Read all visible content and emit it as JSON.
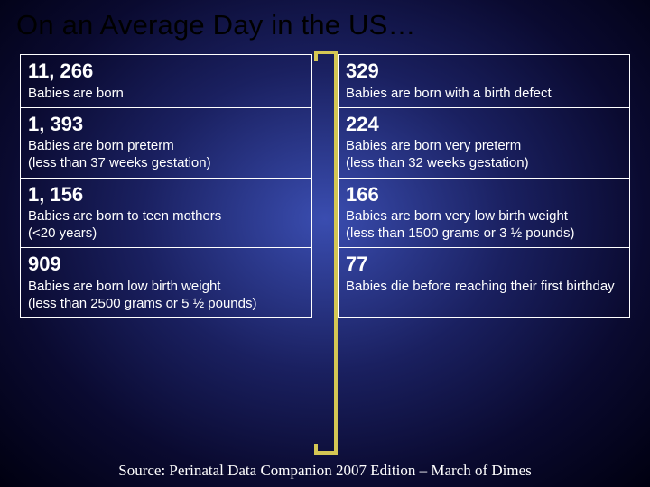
{
  "title": "On an Average Day in the US…",
  "left": [
    {
      "num": "11, 266",
      "desc": "Babies are born"
    },
    {
      "num": "1, 393",
      "desc": "Babies are born preterm\n(less than 37 weeks gestation)"
    },
    {
      "num": "1, 156",
      "desc": "Babies are born to teen mothers\n(<20 years)"
    },
    {
      "num": "909",
      "desc": "Babies are born low birth weight\n(less than 2500 grams or 5 ½ pounds)"
    }
  ],
  "right": [
    {
      "num": "329",
      "desc": "Babies are born with a birth defect"
    },
    {
      "num": "224",
      "desc": "Babies are born very preterm\n(less than 32 weeks gestation)"
    },
    {
      "num": "166",
      "desc": "Babies are born very low birth weight\n(less than 1500 grams or 3 ½ pounds)"
    },
    {
      "num": "77",
      "desc": "Babies die before reaching their first birthday"
    }
  ],
  "source": "Source:  Perinatal Data Companion 2007 Edition – March of Dimes",
  "bracket_color": "#d4c654",
  "bracket_stroke_width": 4
}
